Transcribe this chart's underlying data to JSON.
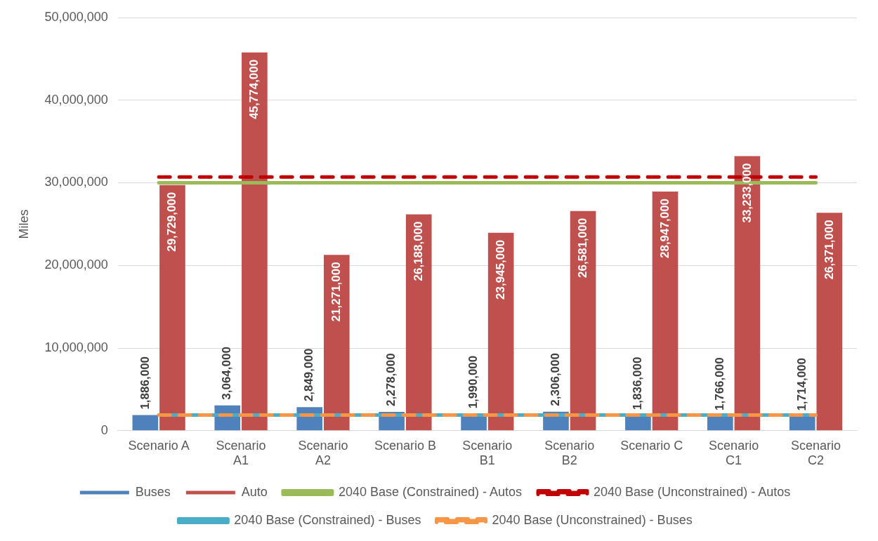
{
  "chart_data": {
    "type": "bar",
    "ylabel": "Miles",
    "categories": [
      "Scenario A",
      "Scenario A1",
      "Scenario A2",
      "Scenario B",
      "Scenario B1",
      "Scenario B2",
      "Scenario C",
      "Scenario C1",
      "Scenario C2"
    ],
    "series": [
      {
        "name": "Buses",
        "color": "#4f81bd",
        "values": [
          1886000,
          3064000,
          2849000,
          2278000,
          1990000,
          2306000,
          1836000,
          1766000,
          1714000
        ],
        "value_labels": [
          "1,886,000",
          "3,064,000",
          "2,849,000",
          "2,278,000",
          "1,990,000",
          "2,306,000",
          "1,836,000",
          "1,766,000",
          "1,714,000"
        ]
      },
      {
        "name": "Auto",
        "color": "#c0504d",
        "values": [
          29729000,
          45774000,
          21271000,
          26188000,
          23945000,
          26581000,
          28947000,
          33233000,
          26371000
        ],
        "value_labels": [
          "29,729,000",
          "45,774,000",
          "21,271,000",
          "26,188,000",
          "23,945,000",
          "26,581,000",
          "28,947,000",
          "33,233,000",
          "26,371,000"
        ]
      },
      {
        "name": "2040 Base (Constrained) - Autos",
        "type": "line",
        "color": "#9bbb59",
        "line_style": "solid",
        "values": [
          30000000,
          30000000,
          30000000,
          30000000,
          30000000,
          30000000,
          30000000,
          30000000,
          30000000
        ]
      },
      {
        "name": "2040 Base (Unconstrained) - Autos",
        "type": "line",
        "color": "#c00000",
        "line_style": "dashed",
        "values": [
          30700000,
          30700000,
          30700000,
          30700000,
          30700000,
          30700000,
          30700000,
          30700000,
          30700000
        ]
      },
      {
        "name": "2040 Base (Constrained) - Buses",
        "type": "line",
        "color": "#4bacc6",
        "line_style": "solid",
        "values": [
          1900000,
          1900000,
          1900000,
          1900000,
          1900000,
          1900000,
          1900000,
          1900000,
          1900000
        ]
      },
      {
        "name": "2040 Base (Unconstrained) - Buses",
        "type": "line",
        "color": "#f79646",
        "line_style": "dashed",
        "values": [
          1900000,
          1900000,
          1900000,
          1900000,
          1900000,
          1900000,
          1900000,
          1900000,
          1900000
        ]
      }
    ],
    "ylim": [
      0,
      50000000
    ],
    "yticks": [
      0,
      {
        "value": 10000000,
        "label": "10,000,000"
      },
      {
        "value": 20000000,
        "label": "20,000,000"
      },
      {
        "value": 30000000,
        "label": "30,000,000"
      },
      {
        "value": 40000000,
        "label": "40,000,000"
      },
      {
        "value": 50000000,
        "label": "50,000,000"
      }
    ],
    "grid": "y",
    "legend": "bottom",
    "marker": "none"
  }
}
